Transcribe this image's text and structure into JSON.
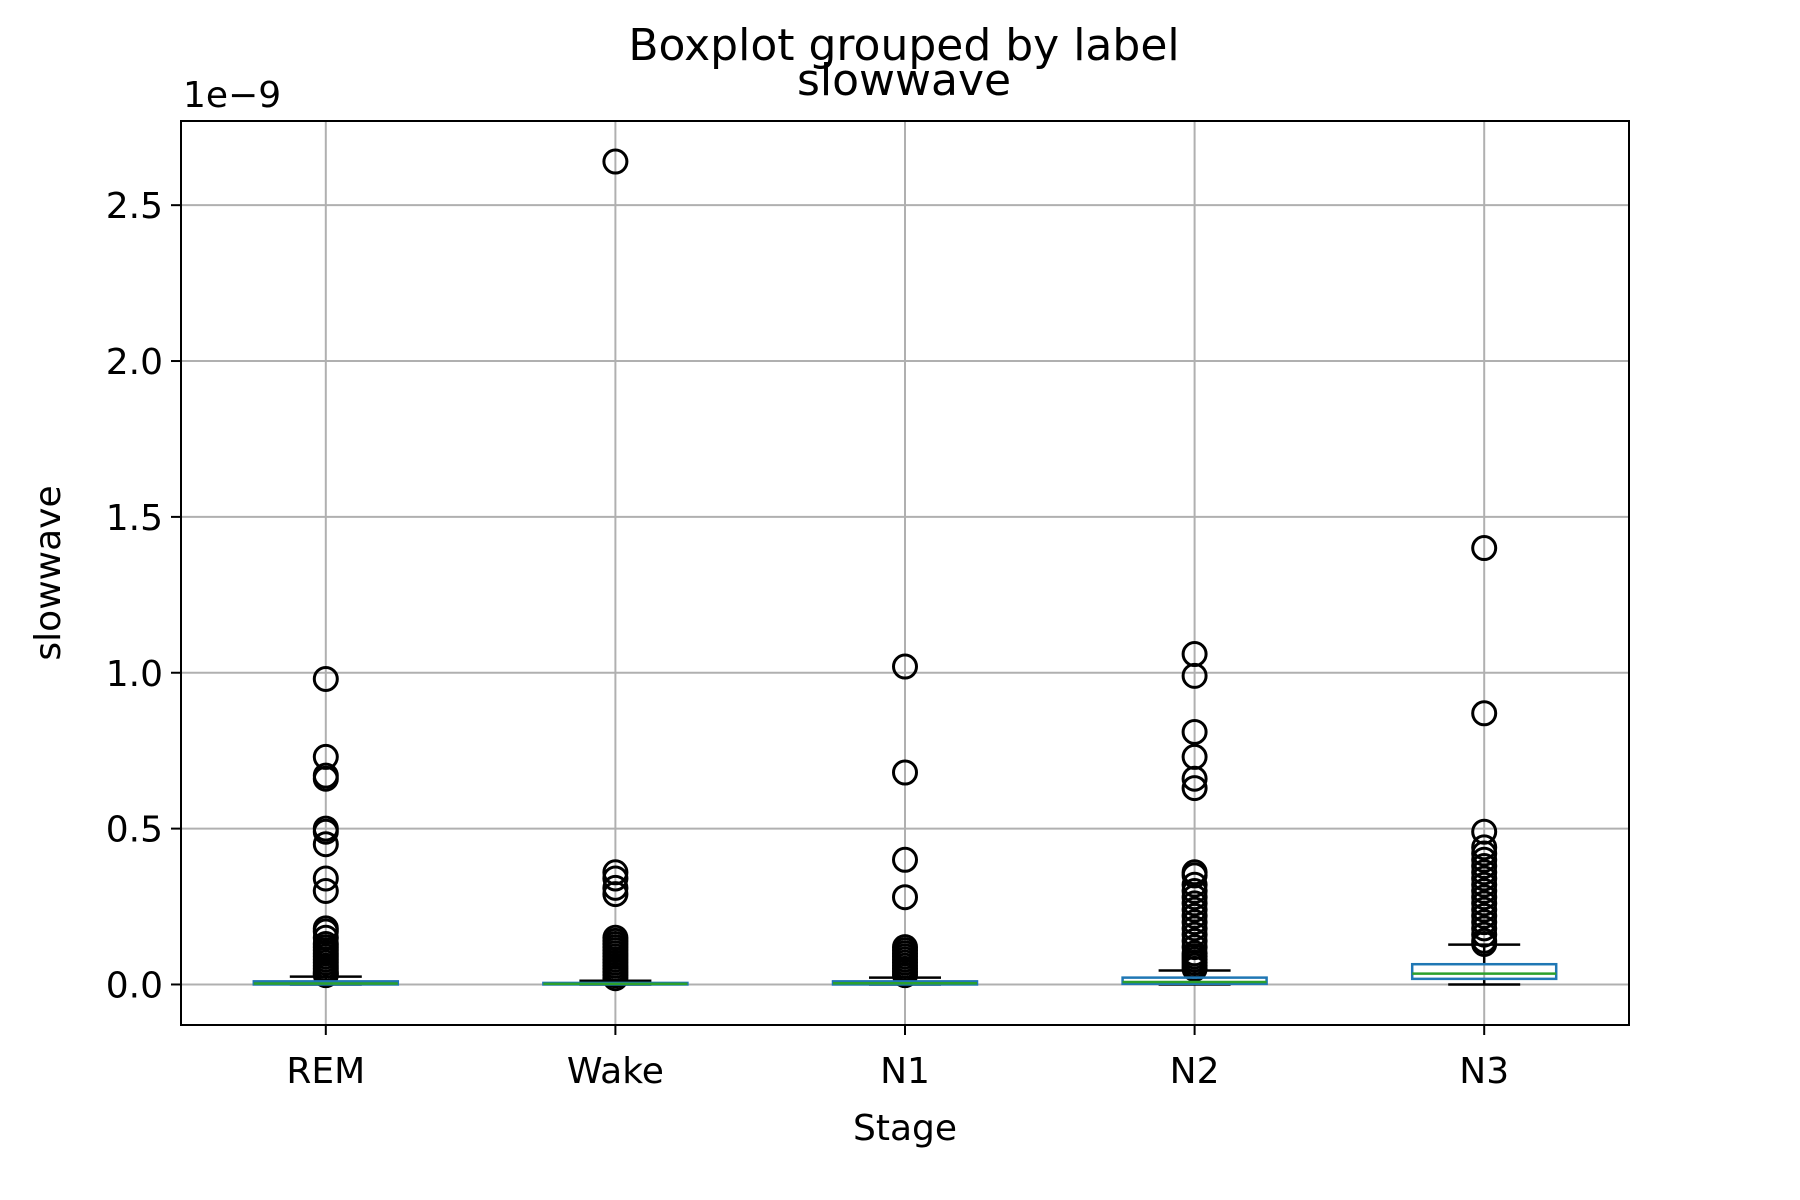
{
  "chart_data": {
    "type": "boxplot",
    "suptitle": "Boxplot grouped by label",
    "title": "slowwave",
    "xlabel": "Stage",
    "ylabel": "slowwave",
    "y_offset_label": "1e−9",
    "ylim": [
      -0.13,
      2.77
    ],
    "yticks": [
      0.0,
      0.5,
      1.0,
      1.5,
      2.0,
      2.5
    ],
    "ytick_labels": [
      "0.0",
      "0.5",
      "1.0",
      "1.5",
      "2.0",
      "2.5"
    ],
    "grid": true,
    "categories": [
      "REM",
      "Wake",
      "N1",
      "N2",
      "N3"
    ],
    "boxes": [
      {
        "label": "REM",
        "whisker_low": 0.0,
        "q1": 0.0,
        "median": 0.003,
        "q3": 0.01,
        "whisker_high": 0.025,
        "outliers": [
          0.98,
          0.73,
          0.67,
          0.66,
          0.5,
          0.49,
          0.45,
          0.34,
          0.3,
          0.18,
          0.17,
          0.15,
          0.13,
          0.12,
          0.11,
          0.1,
          0.09,
          0.08,
          0.07,
          0.06,
          0.05,
          0.04,
          0.035,
          0.03
        ]
      },
      {
        "label": "Wake",
        "whisker_low": 0.0,
        "q1": 0.0,
        "median": 0.002,
        "q3": 0.005,
        "whisker_high": 0.012,
        "outliers": [
          2.64,
          0.36,
          0.34,
          0.31,
          0.29,
          0.15,
          0.14,
          0.13,
          0.12,
          0.11,
          0.1,
          0.09,
          0.08,
          0.07,
          0.06,
          0.05,
          0.04,
          0.03,
          0.02
        ]
      },
      {
        "label": "N1",
        "whisker_low": 0.0,
        "q1": 0.0,
        "median": 0.004,
        "q3": 0.01,
        "whisker_high": 0.022,
        "outliers": [
          1.02,
          0.68,
          0.4,
          0.28,
          0.12,
          0.11,
          0.1,
          0.09,
          0.08,
          0.07,
          0.06,
          0.05,
          0.04,
          0.03
        ]
      },
      {
        "label": "N2",
        "whisker_low": 0.0,
        "q1": 0.002,
        "median": 0.008,
        "q3": 0.022,
        "whisker_high": 0.045,
        "outliers": [
          1.06,
          0.99,
          0.81,
          0.73,
          0.66,
          0.63,
          0.36,
          0.35,
          0.32,
          0.3,
          0.28,
          0.26,
          0.24,
          0.22,
          0.2,
          0.18,
          0.16,
          0.14,
          0.12,
          0.1,
          0.09,
          0.08,
          0.07,
          0.06,
          0.05
        ]
      },
      {
        "label": "N3",
        "whisker_low": 0.0,
        "q1": 0.018,
        "median": 0.035,
        "q3": 0.065,
        "whisker_high": 0.128,
        "outliers": [
          1.4,
          0.87,
          0.49,
          0.44,
          0.42,
          0.4,
          0.38,
          0.36,
          0.34,
          0.32,
          0.3,
          0.28,
          0.26,
          0.24,
          0.22,
          0.2,
          0.18,
          0.16,
          0.14,
          0.13
        ]
      }
    ],
    "colors": {
      "box": "#1f77b4",
      "median": "#2ca02c",
      "whisker": "#000000",
      "outlier": "#000000",
      "grid": "#b0b0b0",
      "axes": "#000000"
    }
  }
}
